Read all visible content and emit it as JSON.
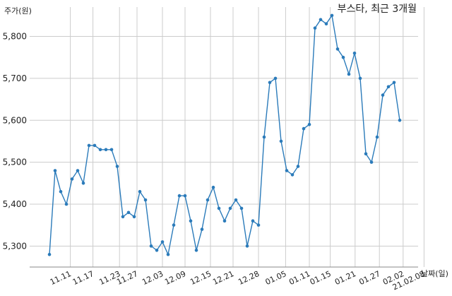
{
  "chart_data": {
    "type": "line",
    "title": "부스타, 최근 3개월",
    "ylabel": "주가(원)",
    "xlabel": "날짜(일)",
    "ylim": [
      5250,
      5870
    ],
    "grid": true,
    "legend": "none",
    "line_color": "#2b7bba",
    "y_ticks": [
      5300,
      5400,
      5500,
      5600,
      5700,
      5800
    ],
    "y_tick_labels": [
      "5,300",
      "5,400",
      "5,500",
      "5,600",
      "5,700",
      "5,800"
    ],
    "x_tick_labels": [
      "11.11",
      "11.17",
      "11.23",
      "11.27",
      "12.03",
      "12.09",
      "12.15",
      "12.21",
      "12.28",
      "01.05",
      "01.11",
      "01.15",
      "01.21",
      "01.27",
      "02.02",
      "21.02.08"
    ],
    "values": [
      5280,
      5480,
      5430,
      5400,
      5460,
      5480,
      5450,
      5540,
      5540,
      5530,
      5530,
      5530,
      5490,
      5370,
      5380,
      5370,
      5430,
      5410,
      5300,
      5290,
      5310,
      5280,
      5350,
      5420,
      5420,
      5360,
      5290,
      5340,
      5410,
      5440,
      5390,
      5360,
      5390,
      5410,
      5390,
      5300,
      5360,
      5350,
      5560,
      5690,
      5700,
      5550,
      5480,
      5470,
      5490,
      5580,
      5590,
      5820,
      5840,
      5830,
      5850,
      5770,
      5750,
      5710,
      5760,
      5700,
      5520,
      5500,
      5560,
      5660,
      5680,
      5690,
      5600
    ]
  }
}
